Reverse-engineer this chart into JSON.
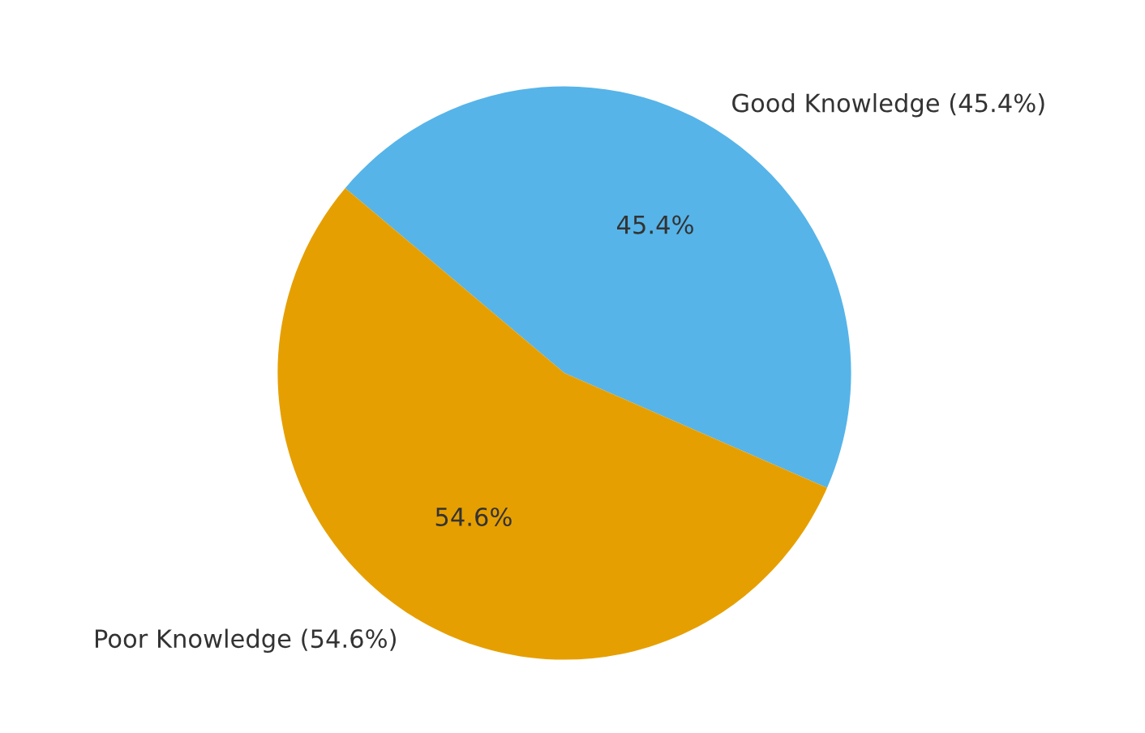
{
  "chart_data": {
    "type": "pie",
    "categories": [
      "Good Knowledge (45.4%)",
      "Poor Knowledge (54.6%)"
    ],
    "values": [
      45.4,
      54.6
    ],
    "value_labels": [
      "45.4%",
      "54.6%"
    ],
    "colors": [
      "#56b4e9",
      "#e69f00"
    ],
    "legend": false
  }
}
